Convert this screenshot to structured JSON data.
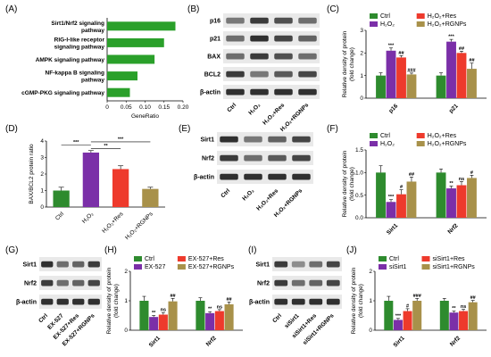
{
  "colors": {
    "ctrl": "#2e8b2e",
    "h2o2": "#7b2fa8",
    "res": "#ee3a2c",
    "rgnp": "#a8914a",
    "enrich": "#2aa02a",
    "blot_bg": "#e9e9e9",
    "band": "#1c1c1c"
  },
  "panels": {
    "A": {
      "label": "(A)"
    },
    "B": {
      "label": "(B)",
      "rows": [
        "p16",
        "p21",
        "BAX",
        "BCL2",
        "β-actin"
      ],
      "lanes": [
        "Ctrl",
        "H₂O₂",
        "H₂O₂+Res",
        "H₂O₂+RGNPs"
      ]
    },
    "C": {
      "label": "(C)"
    },
    "D": {
      "label": "(D)"
    },
    "E": {
      "label": "(E)",
      "rows": [
        "Sirt1",
        "Nrf2",
        "β-actin"
      ],
      "lanes": [
        "Ctrl",
        "H₂O₂",
        "H₂O₂+Res",
        "H₂O₂+RGNPs"
      ]
    },
    "F": {
      "label": "(F)"
    },
    "G": {
      "label": "(G)",
      "rows": [
        "Sirt1",
        "Nrf2",
        "β-actin"
      ],
      "lanes": [
        "Ctrl",
        "EX-527",
        "EX-527+Res",
        "EX-527+RGNPs"
      ]
    },
    "H": {
      "label": "(H)"
    },
    "I": {
      "label": "(I)",
      "rows": [
        "Sirt1",
        "Nrf2",
        "β-actin"
      ],
      "lanes": [
        "Ctrl",
        "siSirt1",
        "siSirt1+Res",
        "siSirt1+RGNPs"
      ]
    },
    "J": {
      "label": "(J)"
    }
  },
  "chart_data": [
    {
      "panel": "A",
      "type": "bar",
      "orientation": "horizontal",
      "categories": [
        "Sirt1/Nrf2 signaling pathway",
        "RIG-I-like receptor signaling pathway",
        "AMPK signaling pathway",
        "NF-kappa B signaling pathway",
        "cGMP-PKG signaling pathway"
      ],
      "values": [
        0.18,
        0.15,
        0.125,
        0.08,
        0.06
      ],
      "xlabel": "GeneRatio",
      "xlim": [
        0,
        0.2
      ],
      "xticks": [
        "0",
        "0.05",
        "0.10",
        "0.15",
        "0.20"
      ]
    },
    {
      "panel": "C",
      "type": "bar",
      "categories": [
        "p16",
        "p21"
      ],
      "series": [
        {
          "name": "Ctrl",
          "values": [
            1.0,
            1.0
          ],
          "err": [
            0.12,
            0.12
          ],
          "sig": [
            "",
            ""
          ]
        },
        {
          "name": "H₂O₂",
          "values": [
            2.1,
            2.5
          ],
          "err": [
            0.12,
            0.1
          ],
          "sig": [
            "***",
            "***"
          ]
        },
        {
          "name": "H₂O₂+Res",
          "values": [
            1.8,
            2.0
          ],
          "err": [
            0.08,
            0.08
          ],
          "sig": [
            "##",
            "##"
          ]
        },
        {
          "name": "H₂O₂+RGNPs",
          "values": [
            1.05,
            1.3
          ],
          "err": [
            0.06,
            0.25
          ],
          "sig": [
            "###",
            "##"
          ]
        }
      ],
      "ylabel": "Relative density of protein (fold change)",
      "ylim": [
        0,
        3
      ],
      "yticks": [
        "0",
        "1",
        "2",
        "3"
      ],
      "legend": "top"
    },
    {
      "panel": "D",
      "type": "bar",
      "categories": [
        "Ctrl",
        "H₂O₂",
        "H₂O₂+Res",
        "H₂O₂+RGNPs"
      ],
      "values": [
        1.0,
        3.3,
        2.3,
        1.1
      ],
      "err": [
        0.2,
        0.12,
        0.2,
        0.1
      ],
      "ylabel": "BAX/BCL2 protein ratio",
      "ylim": [
        0,
        4
      ],
      "yticks": [
        "0",
        "1",
        "2",
        "3",
        "4"
      ],
      "brackets": [
        {
          "from": 0,
          "to": 1,
          "text": "***"
        },
        {
          "from": 1,
          "to": 2,
          "text": "**"
        },
        {
          "from": 1,
          "to": 3,
          "text": "***"
        }
      ]
    },
    {
      "panel": "F",
      "type": "bar",
      "categories": [
        "Sirt1",
        "Nrf2"
      ],
      "series": [
        {
          "name": "Ctrl",
          "values": [
            1.0,
            1.0
          ],
          "err": [
            0.15,
            0.08
          ],
          "sig": [
            "",
            ""
          ]
        },
        {
          "name": "H₂O₂",
          "values": [
            0.35,
            0.65
          ],
          "err": [
            0.05,
            0.05
          ],
          "sig": [
            "***",
            "**"
          ]
        },
        {
          "name": "H₂O₂+Res",
          "values": [
            0.52,
            0.72
          ],
          "err": [
            0.1,
            0.08
          ],
          "sig": [
            "#",
            "ns"
          ]
        },
        {
          "name": "H₂O₂+RGNPs",
          "values": [
            0.8,
            0.88
          ],
          "err": [
            0.1,
            0.06
          ],
          "sig": [
            "##",
            "#"
          ]
        }
      ],
      "ylabel": "Relative density of protein (fold change)",
      "ylim": [
        0,
        1.5
      ],
      "yticks": [
        "0.0",
        "0.5",
        "1.0",
        "1.5"
      ],
      "legend": "top"
    },
    {
      "panel": "H",
      "type": "bar",
      "categories": [
        "Sirt1",
        "Nrf2"
      ],
      "series": [
        {
          "name": "Ctrl",
          "values": [
            1.0,
            1.0
          ],
          "err": [
            0.15,
            0.1
          ],
          "sig": [
            "",
            ""
          ]
        },
        {
          "name": "EX-527",
          "values": [
            0.45,
            0.58
          ],
          "err": [
            0.05,
            0.05
          ],
          "sig": [
            "**",
            "**"
          ]
        },
        {
          "name": "EX-527+Res",
          "values": [
            0.53,
            0.65
          ],
          "err": [
            0.07,
            0.05
          ],
          "sig": [
            "ns",
            "ns"
          ]
        },
        {
          "name": "EX-527+RGNPs",
          "values": [
            0.98,
            0.88
          ],
          "err": [
            0.1,
            0.08
          ],
          "sig": [
            "##",
            "##"
          ]
        }
      ],
      "ylabel": "Relative density of protein (fold change)",
      "ylim": [
        0,
        2.0
      ],
      "yticks": [
        "0",
        "1",
        "2"
      ],
      "legend": "top"
    },
    {
      "panel": "J",
      "type": "bar",
      "categories": [
        "Sirt1",
        "Nrf2"
      ],
      "series": [
        {
          "name": "Ctrl",
          "values": [
            1.0,
            1.0
          ],
          "err": [
            0.15,
            0.08
          ],
          "sig": [
            "",
            ""
          ]
        },
        {
          "name": "siSirt1",
          "values": [
            0.35,
            0.6
          ],
          "err": [
            0.05,
            0.05
          ],
          "sig": [
            "***",
            "**"
          ]
        },
        {
          "name": "siSirt1+Res",
          "values": [
            0.65,
            0.65
          ],
          "err": [
            0.08,
            0.06
          ],
          "sig": [
            "#",
            "ns"
          ]
        },
        {
          "name": "siSirt1+RGNPs",
          "values": [
            1.0,
            0.95
          ],
          "err": [
            0.08,
            0.06
          ],
          "sig": [
            "###",
            "##"
          ]
        }
      ],
      "ylabel": "Relative density of protein (fold change)",
      "ylim": [
        0,
        2.0
      ],
      "yticks": [
        "0",
        "1",
        "2"
      ],
      "legend": "top"
    }
  ]
}
